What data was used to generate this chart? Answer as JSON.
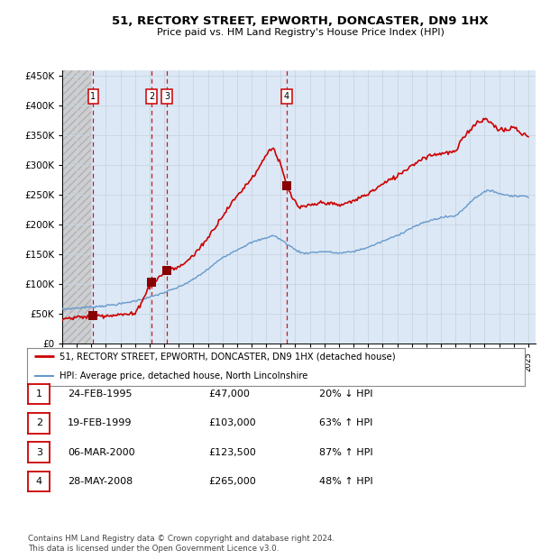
{
  "title_line1": "51, RECTORY STREET, EPWORTH, DONCASTER, DN9 1HX",
  "title_line2": "Price paid vs. HM Land Registry's House Price Index (HPI)",
  "legend_line1": "51, RECTORY STREET, EPWORTH, DONCASTER, DN9 1HX (detached house)",
  "legend_line2": "HPI: Average price, detached house, North Lincolnshire",
  "table_rows": [
    {
      "num": 1,
      "date": "24-FEB-1995",
      "price": "£47,000",
      "hpi": "20% ↓ HPI"
    },
    {
      "num": 2,
      "date": "19-FEB-1999",
      "price": "£103,000",
      "hpi": "63% ↑ HPI"
    },
    {
      "num": 3,
      "date": "06-MAR-2000",
      "price": "£123,500",
      "hpi": "87% ↑ HPI"
    },
    {
      "num": 4,
      "date": "28-MAY-2008",
      "price": "£265,000",
      "hpi": "48% ↑ HPI"
    }
  ],
  "footer": "Contains HM Land Registry data © Crown copyright and database right 2024.\nThis data is licensed under the Open Government Licence v3.0.",
  "hpi_color": "#6699cc",
  "price_color": "#cc0000",
  "marker_color": "#880000",
  "vline_color": "#cc0000",
  "grid_color": "#c8d4e0",
  "bg_plot": "#dce8f5",
  "ylim_max": 460000,
  "ylim_min": 0,
  "trans_dates_f": [
    1995.13,
    1999.13,
    2000.18,
    2008.41
  ],
  "trans_prices": [
    47000,
    103000,
    123500,
    265000
  ],
  "hpi_anchors_x": [
    1993.0,
    1994.0,
    1995.0,
    1996.0,
    1997.0,
    1998.0,
    1999.0,
    2000.0,
    2001.0,
    2002.0,
    2003.0,
    2004.0,
    2005.0,
    2006.0,
    2007.0,
    2007.5,
    2008.0,
    2009.0,
    2009.5,
    2010.0,
    2011.0,
    2012.0,
    2013.0,
    2014.0,
    2015.0,
    2016.0,
    2017.0,
    2018.0,
    2019.0,
    2020.0,
    2020.5,
    2021.0,
    2021.5,
    2022.0,
    2022.5,
    2023.0,
    2024.0,
    2025.0
  ],
  "hpi_anchors_y": [
    58000,
    60000,
    62000,
    64000,
    67000,
    72000,
    78000,
    86000,
    95000,
    108000,
    125000,
    145000,
    158000,
    170000,
    178000,
    182000,
    175000,
    158000,
    152000,
    153000,
    155000,
    152000,
    155000,
    162000,
    172000,
    182000,
    195000,
    205000,
    212000,
    215000,
    225000,
    238000,
    248000,
    255000,
    258000,
    252000,
    248000,
    248000
  ],
  "price_anchors_x": [
    1993.0,
    1994.5,
    1995.13,
    1998.0,
    1999.13,
    1999.5,
    2000.18,
    2001.0,
    2002.0,
    2003.0,
    2004.0,
    2005.0,
    2006.0,
    2006.5,
    2007.0,
    2007.4,
    2007.5,
    2008.0,
    2008.41,
    2008.8,
    2009.3,
    2010.0,
    2011.0,
    2012.0,
    2013.0,
    2014.0,
    2015.0,
    2016.0,
    2017.0,
    2018.0,
    2019.0,
    2020.0,
    2020.5,
    2021.0,
    2021.5,
    2022.0,
    2022.5,
    2023.0,
    2023.5,
    2024.0,
    2024.5,
    2025.0
  ],
  "price_anchors_y": [
    42000,
    45000,
    47000,
    50000,
    103000,
    108000,
    123500,
    128000,
    148000,
    178000,
    215000,
    248000,
    278000,
    295000,
    318000,
    330000,
    328000,
    300000,
    265000,
    245000,
    228000,
    232000,
    238000,
    232000,
    240000,
    252000,
    268000,
    282000,
    300000,
    315000,
    320000,
    322000,
    345000,
    360000,
    372000,
    378000,
    370000,
    360000,
    358000,
    365000,
    352000,
    350000
  ]
}
